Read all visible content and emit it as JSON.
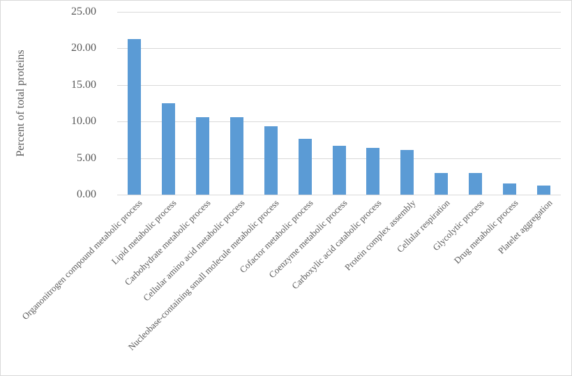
{
  "chart_data": {
    "type": "bar",
    "title": "",
    "xlabel": "",
    "ylabel": "Percent of total proteins",
    "ylim": [
      0,
      25
    ],
    "yticks": [
      "0.00",
      "5.00",
      "10.00",
      "15.00",
      "20.00",
      "25.00"
    ],
    "grid": true,
    "legend": null,
    "bar_color": "#5b9bd5",
    "categories": [
      "Organonitrogen compound metabolic process",
      "Lipid metabolic process",
      "Carbohydrate metabolic process",
      "Cellular amino acid metabolic process",
      "Nucleobase-containing small molecule metabolic process",
      "Cofactor metabolic process",
      "Coenzyme metabolic process",
      "Carboxylic acid catabolic process",
      "Protein complex assembly",
      "Cellular respiration",
      "Glycolytic process",
      "Drug metabolic process",
      "Platelet aggregation"
    ],
    "values": [
      21.3,
      12.5,
      10.6,
      10.6,
      9.4,
      7.6,
      6.7,
      6.4,
      6.1,
      3.0,
      3.0,
      1.5,
      1.2
    ]
  }
}
